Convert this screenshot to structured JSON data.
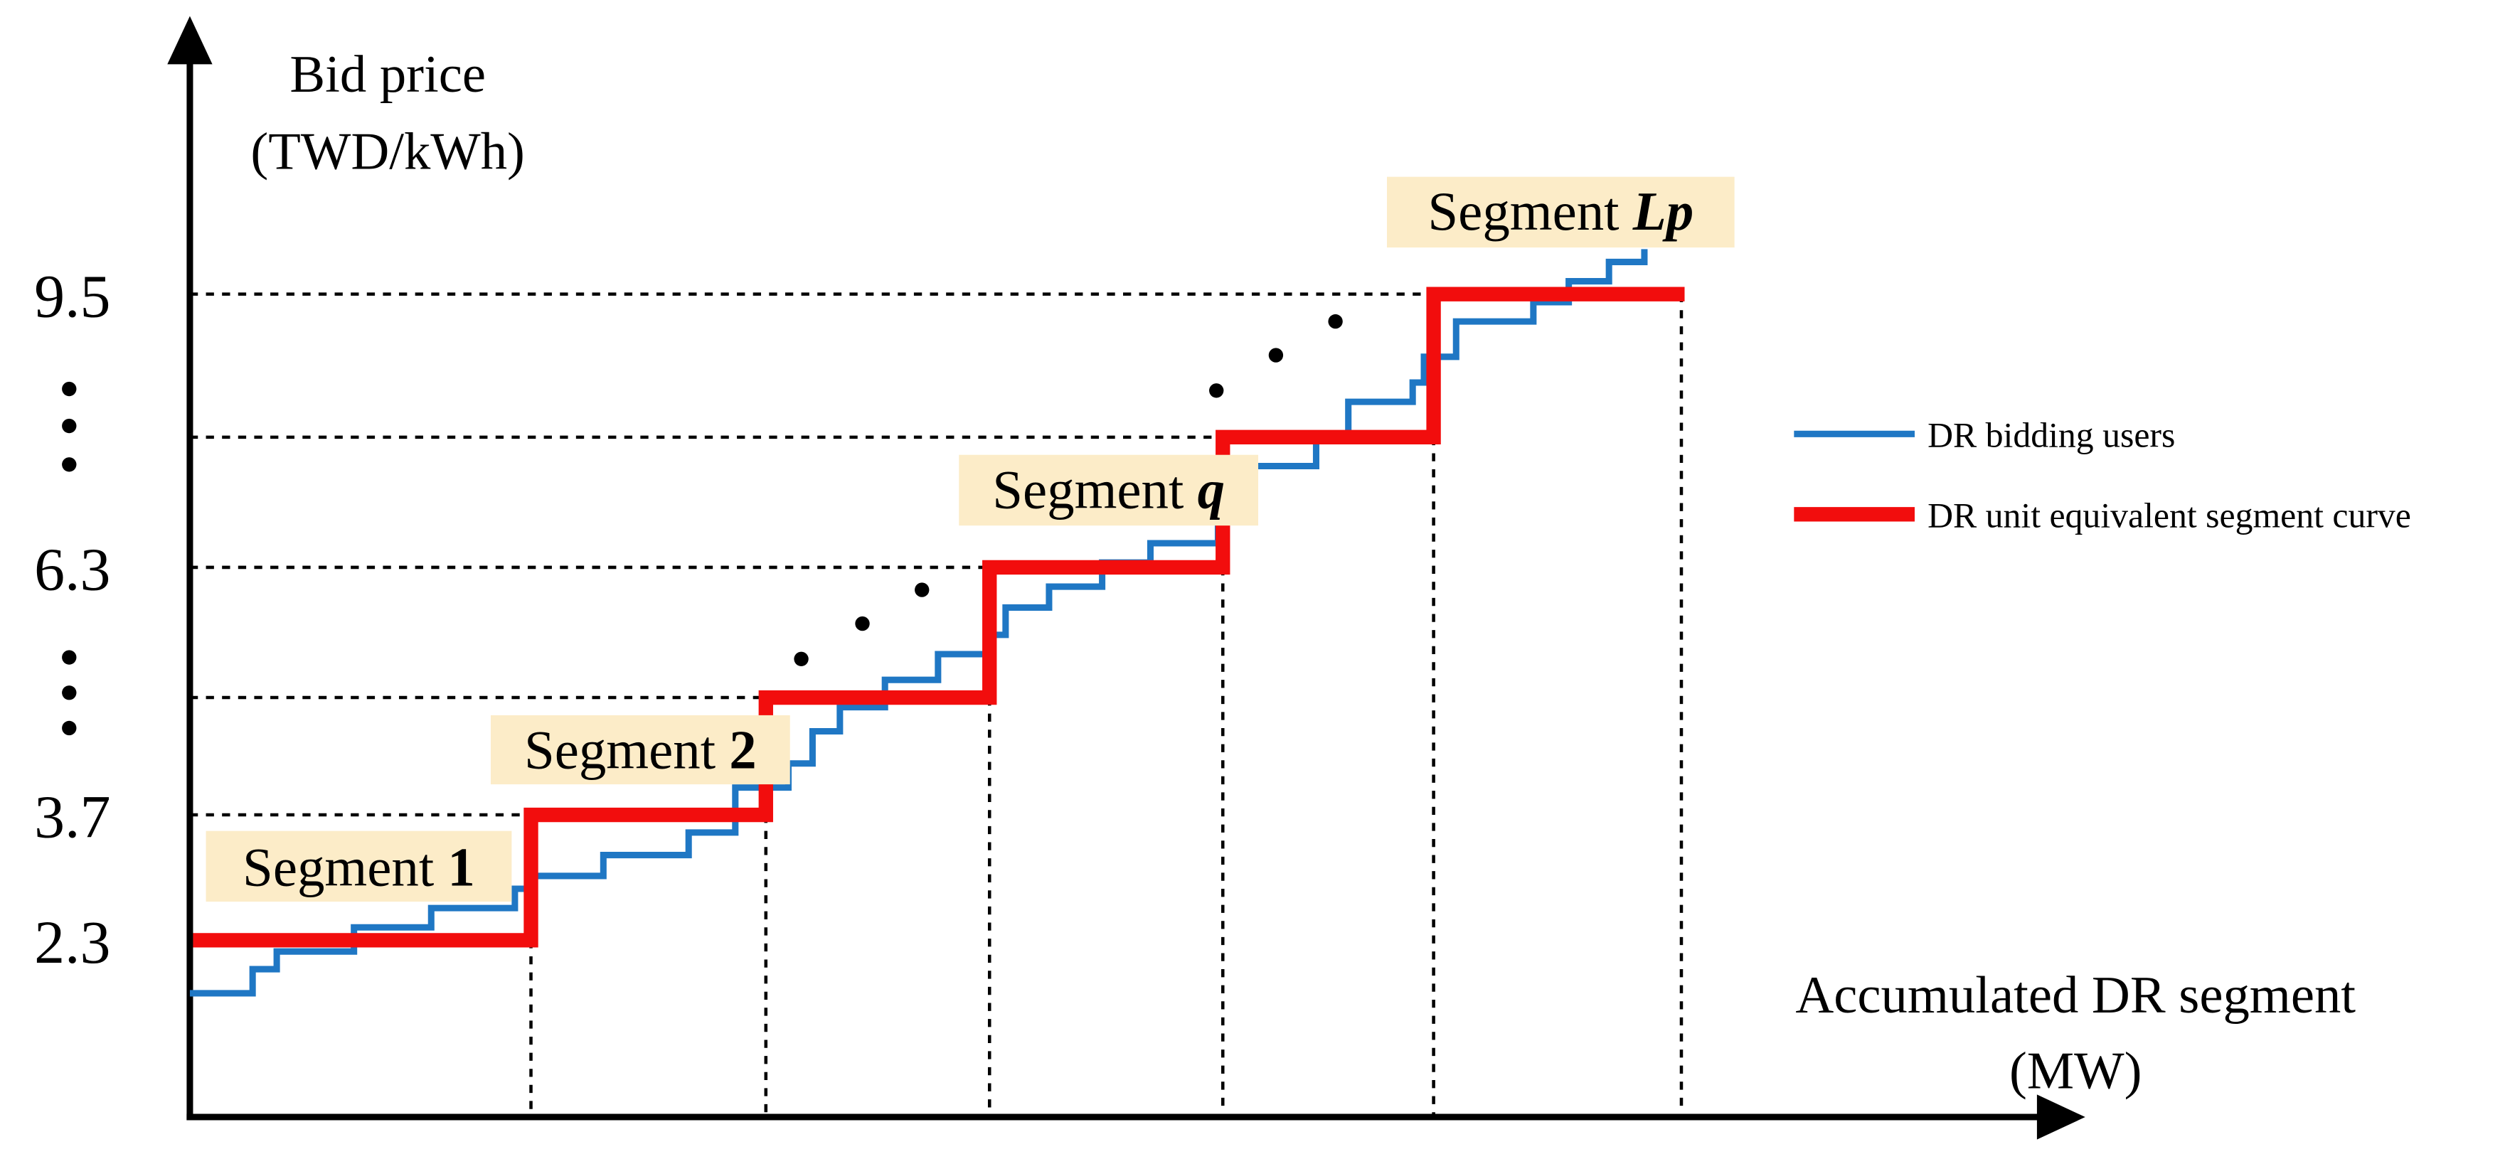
{
  "axes": {
    "y_label_line1": "Bid price",
    "y_label_line2": "(TWD/kWh)",
    "x_label_line1": "Accumulated DR segment",
    "x_label_line2": "(MW)",
    "y_tick_labels": [
      "9.5",
      "6.3",
      "3.7",
      "2.3"
    ]
  },
  "segments": [
    {
      "prefix": "Segment",
      "name": "1"
    },
    {
      "prefix": "Segment",
      "name": "2"
    },
    {
      "prefix": "Segment",
      "name": "q"
    },
    {
      "prefix": "Segment",
      "name": "Lp"
    }
  ],
  "legend": [
    "DR bidding users",
    "DR unit equivalent segment curve"
  ]
}
